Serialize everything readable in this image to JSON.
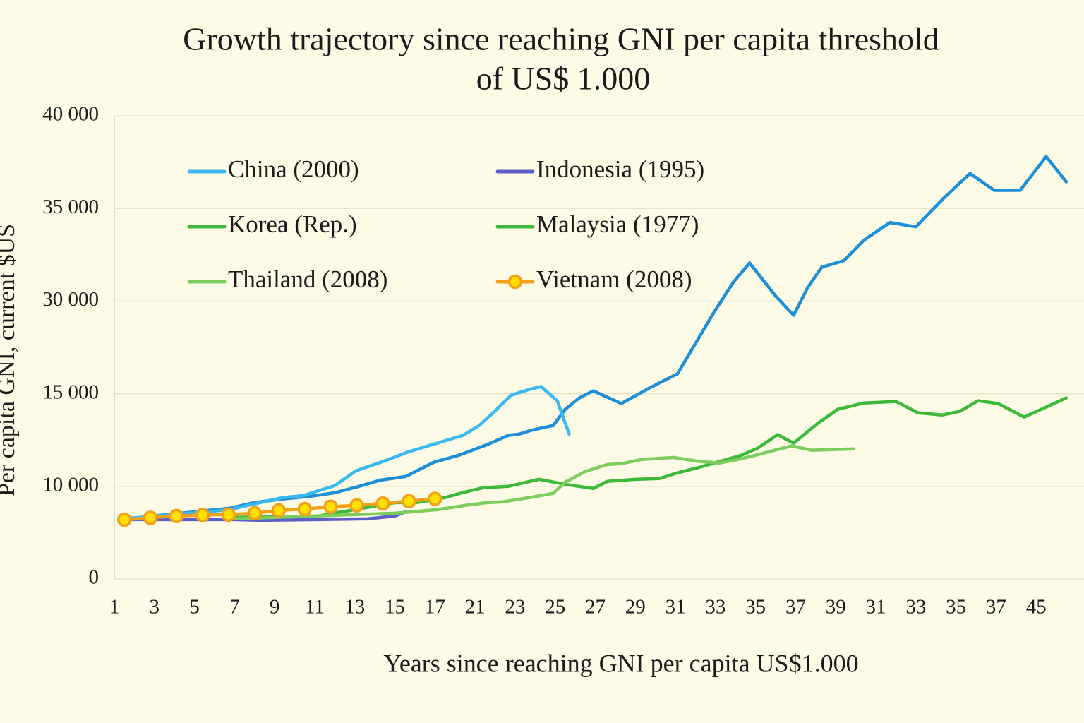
{
  "chart_data": {
    "type": "line",
    "title": [
      "Growth trajectory since reaching GNI per capita threshold",
      "of US$ 1.000"
    ],
    "x_label": "Years since reaching GNI per capita US$1.000",
    "y_label": "Per capita GNI, current $US",
    "xlim": [
      0,
      48
    ],
    "xticks": [
      {
        "value": 0,
        "label": "1"
      },
      {
        "value": 2,
        "label": "3"
      },
      {
        "value": 4,
        "label": "5"
      },
      {
        "value": 6,
        "label": "7"
      },
      {
        "value": 8,
        "label": "9"
      },
      {
        "value": 10,
        "label": "11"
      },
      {
        "value": 12,
        "label": "13"
      },
      {
        "value": 14,
        "label": "15"
      },
      {
        "value": 16,
        "label": "17"
      },
      {
        "value": 18,
        "label": "21"
      },
      {
        "value": 20,
        "label": "23"
      },
      {
        "value": 22,
        "label": "25"
      },
      {
        "value": 24,
        "label": "27"
      },
      {
        "value": 26,
        "label": "29"
      },
      {
        "value": 28,
        "label": "31"
      },
      {
        "value": 30,
        "label": "33"
      },
      {
        "value": 32,
        "label": "35"
      },
      {
        "value": 34,
        "label": "37"
      },
      {
        "value": 36,
        "label": "39"
      },
      {
        "value": 38,
        "label": "31"
      },
      {
        "value": 40,
        "label": "33"
      },
      {
        "value": 42,
        "label": "35"
      },
      {
        "value": 44,
        "label": "37"
      },
      {
        "value": 46,
        "label": "45"
      }
    ],
    "ylim": [
      0,
      40000
    ],
    "yticks": [
      0,
      {
        "value": 10000,
        "label": "10 000"
      },
      {
        "value": 15000,
        "label": "15 000"
      },
      {
        "value": 30000,
        "label": "30 000"
      },
      {
        "value": 35000,
        "label": "35 000"
      },
      {
        "value": 40000,
        "label": "40 000"
      }
    ],
    "grid": true,
    "series": [
      {
        "color": "#1e8fd6",
        "x": [
          0.56,
          5.74,
          6.97,
          8.38,
          9.79,
          11.0,
          12.08,
          13.3,
          14.54,
          15.95,
          17.2,
          18.6,
          19.65,
          20.2,
          20.9,
          21.9,
          22.5,
          23.2,
          23.9,
          25.3,
          26.7,
          28.1,
          29.0,
          29.9,
          30.9,
          31.7,
          33.0,
          33.9,
          34.6,
          35.3,
          36.4,
          37.4,
          38.7,
          40.0,
          41.4,
          42.7,
          43.9,
          45.2,
          46.5,
          47.5
        ],
        "values": [
          6490,
          7630,
          8240,
          8630,
          8930,
          9310,
          9920,
          10340,
          10530,
          11300,
          11680,
          12250,
          12750,
          12820,
          13050,
          13280,
          14160,
          14770,
          15460,
          14470,
          15920,
          18210,
          23130,
          28050,
          31030,
          32060,
          30270,
          27710,
          30730,
          31830,
          32180,
          33280,
          34240,
          34010,
          35570,
          36890,
          35980,
          35980,
          37800,
          36440
        ]
      },
      {
        "name": "China (2000)",
        "color": "#3ab8f0",
        "x": [
          0.56,
          5.74,
          6.97,
          8.38,
          9.44,
          11.0,
          12.06,
          13.3,
          14.7,
          16.1,
          17.4,
          18.2,
          18.9,
          19.8,
          20.7,
          21.3,
          22.1,
          22.7
        ],
        "values": [
          6490,
          7480,
          8090,
          8780,
          9010,
          10040,
          10840,
          11300,
          11870,
          12330,
          12750,
          13280,
          13970,
          14920,
          15690,
          16150,
          14620,
          12820
        ]
      },
      {
        "name": "Indonesia (1995)",
        "color": "#5b5fc7",
        "x": [
          0.56,
          5.92,
          7.32,
          10.14,
          12.61,
          14.0,
          14.54
        ],
        "values": [
          6410,
          6410,
          6340,
          6410,
          6490,
          6790,
          7250
        ]
      },
      {
        "name": "Korea (Rep.)",
        "color": "#3cb83a",
        "x": [
          5.92,
          10.14,
          14.0,
          15.07,
          16.48,
          17.5,
          18.4,
          19.65,
          21.2,
          22.5,
          23.9,
          24.6,
          26.0,
          27.2,
          28.1,
          29.2,
          30.2,
          31.3,
          32.1,
          33.1,
          33.9,
          35.1,
          36.1,
          37.4,
          39.0,
          40.1,
          41.3,
          42.2,
          43.1,
          44.1,
          45.4,
          47.5
        ],
        "values": [
          6640,
          6790,
          8240,
          8240,
          8780,
          9390,
          9850,
          10000,
          10380,
          10110,
          9770,
          10270,
          10380,
          10420,
          10730,
          11030,
          11340,
          11680,
          12060,
          12790,
          12330,
          13400,
          14160,
          14500,
          14580,
          13970,
          13850,
          14050,
          14620,
          14470,
          13740,
          14770
        ]
      },
      {
        "name": "Malaysia (1977)",
        "color": "#3cb83a",
        "x": [],
        "values": []
      },
      {
        "name": "Thailand (2008)",
        "color": "#7ccc5e",
        "x": [
          5.92,
          14.0,
          16.1,
          17.5,
          18.6,
          19.35,
          20.7,
          21.9,
          22.5,
          23.5,
          24.6,
          25.3,
          26.3,
          27.9,
          29.2,
          30.2,
          31.3,
          32.3,
          33.2,
          33.8,
          34.8,
          36.9
        ],
        "values": [
          6490,
          7100,
          7480,
          7940,
          8240,
          8320,
          8780,
          9240,
          10230,
          10800,
          11180,
          11220,
          11450,
          11560,
          11340,
          11260,
          11490,
          11760,
          12020,
          12180,
          11950,
          12020
        ]
      },
      {
        "name": "Vietnam (2008)",
        "color": "#f5a01a",
        "marker_fill": "#ffe000",
        "marker": true,
        "x": [
          0.5,
          1.8,
          3.1,
          4.4,
          5.7,
          7.0,
          8.2,
          9.5,
          10.8,
          12.1,
          13.4,
          14.7,
          16.0
        ],
        "values": [
          6400,
          6600,
          6800,
          6900,
          6950,
          7100,
          7400,
          7550,
          7800,
          7950,
          8150,
          8400,
          8650
        ]
      }
    ]
  }
}
